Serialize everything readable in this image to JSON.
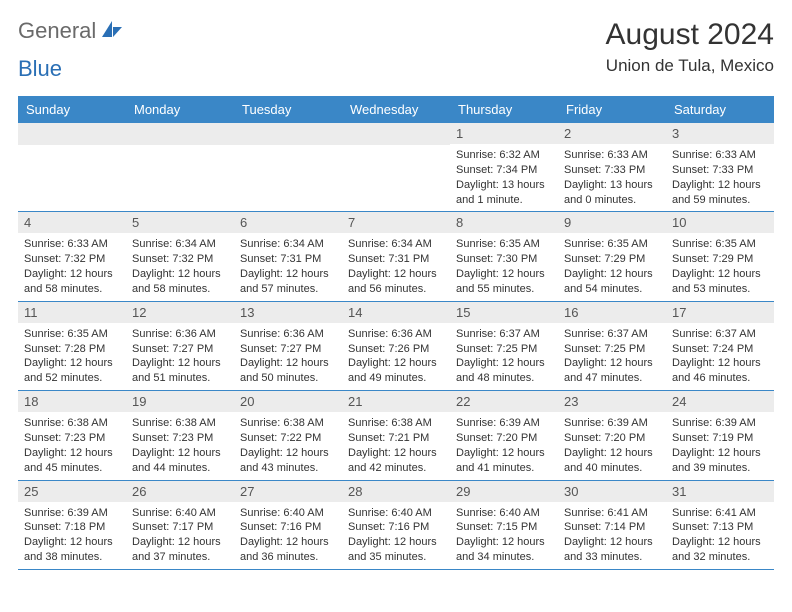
{
  "logo": {
    "text1": "General",
    "text2": "Blue"
  },
  "title": "August 2024",
  "location": "Union de Tula, Mexico",
  "colors": {
    "header_bg": "#3a87c7",
    "header_text": "#ffffff",
    "daynum_bg": "#ececec",
    "divider": "#3a87c7",
    "text": "#333333",
    "logo_gray": "#6a6a6a",
    "logo_blue": "#2a6fb5"
  },
  "day_names": [
    "Sunday",
    "Monday",
    "Tuesday",
    "Wednesday",
    "Thursday",
    "Friday",
    "Saturday"
  ],
  "weeks": [
    [
      {
        "n": "",
        "lines": []
      },
      {
        "n": "",
        "lines": []
      },
      {
        "n": "",
        "lines": []
      },
      {
        "n": "",
        "lines": []
      },
      {
        "n": "1",
        "lines": [
          "Sunrise: 6:32 AM",
          "Sunset: 7:34 PM",
          "Daylight: 13 hours",
          "and 1 minute."
        ]
      },
      {
        "n": "2",
        "lines": [
          "Sunrise: 6:33 AM",
          "Sunset: 7:33 PM",
          "Daylight: 13 hours",
          "and 0 minutes."
        ]
      },
      {
        "n": "3",
        "lines": [
          "Sunrise: 6:33 AM",
          "Sunset: 7:33 PM",
          "Daylight: 12 hours",
          "and 59 minutes."
        ]
      }
    ],
    [
      {
        "n": "4",
        "lines": [
          "Sunrise: 6:33 AM",
          "Sunset: 7:32 PM",
          "Daylight: 12 hours",
          "and 58 minutes."
        ]
      },
      {
        "n": "5",
        "lines": [
          "Sunrise: 6:34 AM",
          "Sunset: 7:32 PM",
          "Daylight: 12 hours",
          "and 58 minutes."
        ]
      },
      {
        "n": "6",
        "lines": [
          "Sunrise: 6:34 AM",
          "Sunset: 7:31 PM",
          "Daylight: 12 hours",
          "and 57 minutes."
        ]
      },
      {
        "n": "7",
        "lines": [
          "Sunrise: 6:34 AM",
          "Sunset: 7:31 PM",
          "Daylight: 12 hours",
          "and 56 minutes."
        ]
      },
      {
        "n": "8",
        "lines": [
          "Sunrise: 6:35 AM",
          "Sunset: 7:30 PM",
          "Daylight: 12 hours",
          "and 55 minutes."
        ]
      },
      {
        "n": "9",
        "lines": [
          "Sunrise: 6:35 AM",
          "Sunset: 7:29 PM",
          "Daylight: 12 hours",
          "and 54 minutes."
        ]
      },
      {
        "n": "10",
        "lines": [
          "Sunrise: 6:35 AM",
          "Sunset: 7:29 PM",
          "Daylight: 12 hours",
          "and 53 minutes."
        ]
      }
    ],
    [
      {
        "n": "11",
        "lines": [
          "Sunrise: 6:35 AM",
          "Sunset: 7:28 PM",
          "Daylight: 12 hours",
          "and 52 minutes."
        ]
      },
      {
        "n": "12",
        "lines": [
          "Sunrise: 6:36 AM",
          "Sunset: 7:27 PM",
          "Daylight: 12 hours",
          "and 51 minutes."
        ]
      },
      {
        "n": "13",
        "lines": [
          "Sunrise: 6:36 AM",
          "Sunset: 7:27 PM",
          "Daylight: 12 hours",
          "and 50 minutes."
        ]
      },
      {
        "n": "14",
        "lines": [
          "Sunrise: 6:36 AM",
          "Sunset: 7:26 PM",
          "Daylight: 12 hours",
          "and 49 minutes."
        ]
      },
      {
        "n": "15",
        "lines": [
          "Sunrise: 6:37 AM",
          "Sunset: 7:25 PM",
          "Daylight: 12 hours",
          "and 48 minutes."
        ]
      },
      {
        "n": "16",
        "lines": [
          "Sunrise: 6:37 AM",
          "Sunset: 7:25 PM",
          "Daylight: 12 hours",
          "and 47 minutes."
        ]
      },
      {
        "n": "17",
        "lines": [
          "Sunrise: 6:37 AM",
          "Sunset: 7:24 PM",
          "Daylight: 12 hours",
          "and 46 minutes."
        ]
      }
    ],
    [
      {
        "n": "18",
        "lines": [
          "Sunrise: 6:38 AM",
          "Sunset: 7:23 PM",
          "Daylight: 12 hours",
          "and 45 minutes."
        ]
      },
      {
        "n": "19",
        "lines": [
          "Sunrise: 6:38 AM",
          "Sunset: 7:23 PM",
          "Daylight: 12 hours",
          "and 44 minutes."
        ]
      },
      {
        "n": "20",
        "lines": [
          "Sunrise: 6:38 AM",
          "Sunset: 7:22 PM",
          "Daylight: 12 hours",
          "and 43 minutes."
        ]
      },
      {
        "n": "21",
        "lines": [
          "Sunrise: 6:38 AM",
          "Sunset: 7:21 PM",
          "Daylight: 12 hours",
          "and 42 minutes."
        ]
      },
      {
        "n": "22",
        "lines": [
          "Sunrise: 6:39 AM",
          "Sunset: 7:20 PM",
          "Daylight: 12 hours",
          "and 41 minutes."
        ]
      },
      {
        "n": "23",
        "lines": [
          "Sunrise: 6:39 AM",
          "Sunset: 7:20 PM",
          "Daylight: 12 hours",
          "and 40 minutes."
        ]
      },
      {
        "n": "24",
        "lines": [
          "Sunrise: 6:39 AM",
          "Sunset: 7:19 PM",
          "Daylight: 12 hours",
          "and 39 minutes."
        ]
      }
    ],
    [
      {
        "n": "25",
        "lines": [
          "Sunrise: 6:39 AM",
          "Sunset: 7:18 PM",
          "Daylight: 12 hours",
          "and 38 minutes."
        ]
      },
      {
        "n": "26",
        "lines": [
          "Sunrise: 6:40 AM",
          "Sunset: 7:17 PM",
          "Daylight: 12 hours",
          "and 37 minutes."
        ]
      },
      {
        "n": "27",
        "lines": [
          "Sunrise: 6:40 AM",
          "Sunset: 7:16 PM",
          "Daylight: 12 hours",
          "and 36 minutes."
        ]
      },
      {
        "n": "28",
        "lines": [
          "Sunrise: 6:40 AM",
          "Sunset: 7:16 PM",
          "Daylight: 12 hours",
          "and 35 minutes."
        ]
      },
      {
        "n": "29",
        "lines": [
          "Sunrise: 6:40 AM",
          "Sunset: 7:15 PM",
          "Daylight: 12 hours",
          "and 34 minutes."
        ]
      },
      {
        "n": "30",
        "lines": [
          "Sunrise: 6:41 AM",
          "Sunset: 7:14 PM",
          "Daylight: 12 hours",
          "and 33 minutes."
        ]
      },
      {
        "n": "31",
        "lines": [
          "Sunrise: 6:41 AM",
          "Sunset: 7:13 PM",
          "Daylight: 12 hours",
          "and 32 minutes."
        ]
      }
    ]
  ]
}
